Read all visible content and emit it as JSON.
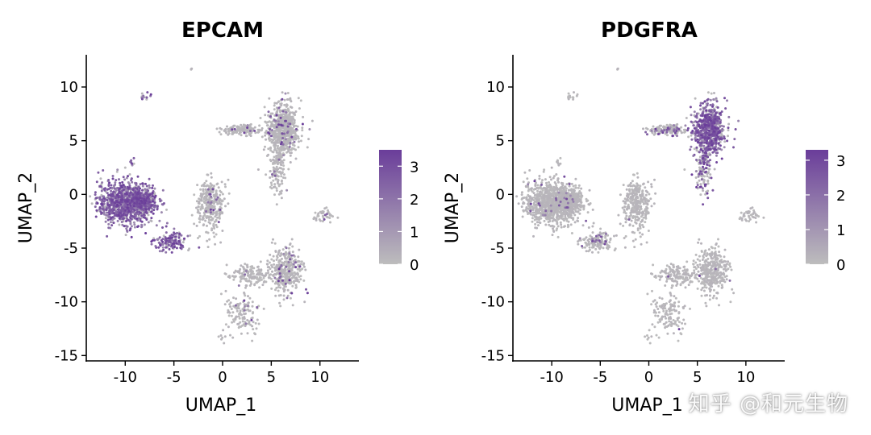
{
  "colors": {
    "low": "#bdbdbd",
    "high": "#6a3d9a",
    "axis": "#000000"
  },
  "watermark": "知乎 @和元生物",
  "chart_data": [
    {
      "type": "scatter",
      "title": "EPCAM",
      "xlabel": "UMAP_1",
      "ylabel": "UMAP_2",
      "xlim": [
        -14,
        14
      ],
      "ylim": [
        -15.5,
        13
      ],
      "xticks": [
        "-10",
        "-5",
        "0",
        "5",
        "10"
      ],
      "yticks": [
        "10",
        "5",
        "0",
        "-5",
        "-10",
        "-15"
      ],
      "legend_ticks": [
        "3",
        "2",
        "1",
        "0"
      ],
      "legend_range": [
        0,
        3.5
      ],
      "legend_placement": "right",
      "clusters": [
        {
          "x": -10,
          "y": -0.8,
          "sx": 1.8,
          "sy": 1.3,
          "n": 900,
          "expr": 0.78
        },
        {
          "x": -8.2,
          "y": -0.6,
          "sx": 0.9,
          "sy": 0.6,
          "n": 350,
          "expr": 0.6
        },
        {
          "x": -5.3,
          "y": -4.4,
          "sx": 1.0,
          "sy": 0.5,
          "n": 140,
          "expr": 0.8
        },
        {
          "x": -8.0,
          "y": 9.2,
          "sx": 0.4,
          "sy": 0.25,
          "n": 12,
          "expr": 0.9
        },
        {
          "x": -9.2,
          "y": 3.0,
          "sx": 0.25,
          "sy": 0.3,
          "n": 8,
          "expr": 0.9
        },
        {
          "x": -1.2,
          "y": -1.0,
          "sx": 0.9,
          "sy": 1.5,
          "n": 320,
          "expr": 0.06
        },
        {
          "x": 6.2,
          "y": 6.0,
          "sx": 1.0,
          "sy": 1.5,
          "n": 700,
          "expr": 0.06
        },
        {
          "x": 1.8,
          "y": 6.0,
          "sx": 1.4,
          "sy": 0.3,
          "n": 140,
          "expr": 0.05
        },
        {
          "x": 5.6,
          "y": 2.0,
          "sx": 0.6,
          "sy": 1.4,
          "n": 120,
          "expr": 0.08
        },
        {
          "x": 6.5,
          "y": -7.0,
          "sx": 1.0,
          "sy": 1.2,
          "n": 380,
          "expr": 0.08
        },
        {
          "x": 3.0,
          "y": -7.5,
          "sx": 1.6,
          "sy": 0.6,
          "n": 160,
          "expr": 0.05
        },
        {
          "x": 2.0,
          "y": -11.0,
          "sx": 1.2,
          "sy": 1.2,
          "n": 130,
          "expr": 0.06
        },
        {
          "x": 10.5,
          "y": -2.0,
          "sx": 0.8,
          "sy": 0.4,
          "n": 40,
          "expr": 0.03
        },
        {
          "x": 0.0,
          "y": -13.5,
          "sx": 0.15,
          "sy": 0.3,
          "n": 6,
          "expr": 0.0
        },
        {
          "x": -3.2,
          "y": 11.7,
          "sx": 0.1,
          "sy": 0.1,
          "n": 3,
          "expr": 0.0
        }
      ]
    },
    {
      "type": "scatter",
      "title": "PDGFRA",
      "xlabel": "UMAP_1",
      "ylabel": "UMAP_2",
      "xlim": [
        -14,
        14
      ],
      "ylim": [
        -15.5,
        13
      ],
      "xticks": [
        "-10",
        "-5",
        "0",
        "5",
        "10"
      ],
      "yticks": [
        "10",
        "5",
        "0",
        "-5",
        "-10",
        "-15"
      ],
      "legend_ticks": [
        "3",
        "2",
        "1",
        "0"
      ],
      "legend_range": [
        0,
        3.3
      ],
      "legend_placement": "right",
      "clusters": [
        {
          "x": -10,
          "y": -0.8,
          "sx": 1.8,
          "sy": 1.3,
          "n": 900,
          "expr": 0.02
        },
        {
          "x": -8.2,
          "y": -0.6,
          "sx": 0.9,
          "sy": 0.6,
          "n": 350,
          "expr": 0.02
        },
        {
          "x": -5.3,
          "y": -4.4,
          "sx": 1.0,
          "sy": 0.5,
          "n": 140,
          "expr": 0.15
        },
        {
          "x": -8.0,
          "y": 9.2,
          "sx": 0.4,
          "sy": 0.25,
          "n": 12,
          "expr": 0.0
        },
        {
          "x": -9.2,
          "y": 3.0,
          "sx": 0.25,
          "sy": 0.3,
          "n": 8,
          "expr": 0.0
        },
        {
          "x": -1.2,
          "y": -1.0,
          "sx": 0.9,
          "sy": 1.5,
          "n": 320,
          "expr": 0.01
        },
        {
          "x": 6.2,
          "y": 6.0,
          "sx": 1.0,
          "sy": 1.5,
          "n": 700,
          "expr": 0.75
        },
        {
          "x": 1.8,
          "y": 6.0,
          "sx": 1.4,
          "sy": 0.3,
          "n": 140,
          "expr": 0.25
        },
        {
          "x": 5.6,
          "y": 2.0,
          "sx": 0.6,
          "sy": 1.4,
          "n": 120,
          "expr": 0.45
        },
        {
          "x": 6.5,
          "y": -7.0,
          "sx": 1.0,
          "sy": 1.2,
          "n": 380,
          "expr": 0.02
        },
        {
          "x": 3.0,
          "y": -7.5,
          "sx": 1.6,
          "sy": 0.6,
          "n": 160,
          "expr": 0.01
        },
        {
          "x": 2.0,
          "y": -11.0,
          "sx": 1.2,
          "sy": 1.2,
          "n": 130,
          "expr": 0.01
        },
        {
          "x": 10.5,
          "y": -2.0,
          "sx": 0.8,
          "sy": 0.4,
          "n": 40,
          "expr": 0.0
        },
        {
          "x": 0.0,
          "y": -13.5,
          "sx": 0.15,
          "sy": 0.3,
          "n": 6,
          "expr": 0.0
        },
        {
          "x": -3.2,
          "y": 11.7,
          "sx": 0.1,
          "sy": 0.1,
          "n": 3,
          "expr": 0.0
        }
      ]
    }
  ]
}
